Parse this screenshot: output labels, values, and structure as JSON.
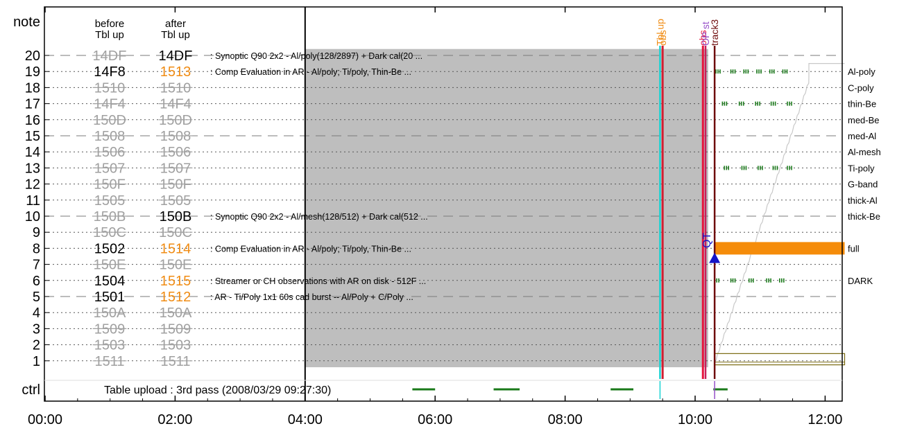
{
  "chart_data": {
    "type": "timeline",
    "title": "",
    "y_axis_title": "note",
    "ctrl_label": "ctrl",
    "rows": [
      "20",
      "19",
      "18",
      "17",
      "16",
      "15",
      "14",
      "13",
      "12",
      "11",
      "10",
      "9",
      "8",
      "7",
      "6",
      "5",
      "4",
      "3",
      "2",
      "1"
    ],
    "x_ticks": [
      "00:00",
      "02:00",
      "04:00",
      "06:00",
      "08:00",
      "10:00",
      "12:00"
    ],
    "x_range_hours": [
      0,
      12.3
    ],
    "col_headers": {
      "before": [
        "before",
        "Tbl up"
      ],
      "after": [
        "after",
        "Tbl up"
      ]
    },
    "table_rows": [
      {
        "row": 20,
        "before": "14DF",
        "before_style": "strike",
        "after": "14DF",
        "after_style": "normal",
        "dashed": true,
        "desc": ": Synoptic Q90 2x2 - Al/poly(128/2897) + Dark cal(20 ..."
      },
      {
        "row": 19,
        "before": "14F8",
        "before_style": "normal",
        "after": "1513",
        "after_style": "changed",
        "dashed": false,
        "desc": ": Comp Evaluation in AR - Al/poly; Ti/poly, Thin-Be ..."
      },
      {
        "row": 18,
        "before": "1510",
        "before_style": "strike",
        "after": "1510",
        "after_style": "strike",
        "dashed": false,
        "desc": ""
      },
      {
        "row": 17,
        "before": "14F4",
        "before_style": "strike",
        "after": "14F4",
        "after_style": "strike",
        "dashed": false,
        "desc": ""
      },
      {
        "row": 16,
        "before": "150D",
        "before_style": "strike",
        "after": "150D",
        "after_style": "strike",
        "dashed": false,
        "desc": ""
      },
      {
        "row": 15,
        "before": "1508",
        "before_style": "strike",
        "after": "1508",
        "after_style": "strike",
        "dashed": true,
        "desc": ""
      },
      {
        "row": 14,
        "before": "1506",
        "before_style": "strike",
        "after": "1506",
        "after_style": "strike",
        "dashed": false,
        "desc": ""
      },
      {
        "row": 13,
        "before": "1507",
        "before_style": "strike",
        "after": "1507",
        "after_style": "strike",
        "dashed": false,
        "desc": ""
      },
      {
        "row": 12,
        "before": "150F",
        "before_style": "strike",
        "after": "150F",
        "after_style": "strike",
        "dashed": false,
        "desc": ""
      },
      {
        "row": 11,
        "before": "1505",
        "before_style": "strike",
        "after": "1505",
        "after_style": "strike",
        "dashed": false,
        "desc": ""
      },
      {
        "row": 10,
        "before": "150B",
        "before_style": "strike",
        "after": "150B",
        "after_style": "normal",
        "dashed": true,
        "desc": ": Synoptic Q90 2x2 - Al/mesh(128/512) + Dark cal(512 ..."
      },
      {
        "row": 9,
        "before": "150C",
        "before_style": "strike",
        "after": "150C",
        "after_style": "strike",
        "dashed": false,
        "desc": ""
      },
      {
        "row": 8,
        "before": "1502",
        "before_style": "normal",
        "after": "1514",
        "after_style": "changed",
        "dashed": false,
        "desc": ": Comp Evaluation in AR - Al/poly; Ti/poly, Thin-Be ..."
      },
      {
        "row": 7,
        "before": "150E",
        "before_style": "strike",
        "after": "150E",
        "after_style": "strike",
        "dashed": false,
        "desc": ""
      },
      {
        "row": 6,
        "before": "1504",
        "before_style": "normal",
        "after": "1515",
        "after_style": "changed",
        "dashed": false,
        "desc": ": Streamer or CH observations with AR on disk - 512F ..."
      },
      {
        "row": 5,
        "before": "1501",
        "before_style": "normal",
        "after": "1512",
        "after_style": "changed",
        "dashed": true,
        "desc": ": AR - Ti/Poly 1x1 60s cad burst -- Al/Poly + C/Poly ..."
      },
      {
        "row": 4,
        "before": "150A",
        "before_style": "strike",
        "after": "150A",
        "after_style": "strike",
        "dashed": false,
        "desc": ""
      },
      {
        "row": 3,
        "before": "1509",
        "before_style": "strike",
        "after": "1509",
        "after_style": "strike",
        "dashed": false,
        "desc": ""
      },
      {
        "row": 2,
        "before": "1503",
        "before_style": "strike",
        "after": "1503",
        "after_style": "strike",
        "dashed": false,
        "desc": ""
      },
      {
        "row": 1,
        "before": "1511",
        "before_style": "strike",
        "after": "1511",
        "after_style": "strike",
        "dashed": false,
        "desc": ""
      }
    ],
    "right_labels": [
      {
        "row": 19,
        "label": "Al-poly"
      },
      {
        "row": 18,
        "label": "C-poly"
      },
      {
        "row": 17,
        "label": "thin-Be"
      },
      {
        "row": 16,
        "label": "med-Be"
      },
      {
        "row": 15,
        "label": "med-Al"
      },
      {
        "row": 14,
        "label": "Al-mesh"
      },
      {
        "row": 13,
        "label": "Ti-poly"
      },
      {
        "row": 12,
        "label": "G-band"
      },
      {
        "row": 11,
        "label": "thick-Al"
      },
      {
        "row": 10,
        "label": "thick-Be"
      },
      {
        "row": 8,
        "label": "full"
      },
      {
        "row": 6,
        "label": "DARK"
      }
    ],
    "ctrl_text": "Table upload : 3rd pass (2008/03/29 09:27:30)",
    "shaded_region": {
      "start": 4.0,
      "end": 10.2,
      "top_row": 20.4,
      "bottom_row": 0.6
    },
    "markers": [
      {
        "time": 9.46,
        "color": "#19d4d4",
        "label": "Tbl up",
        "label_color": "#f08c14"
      },
      {
        "time": 9.5,
        "color": "#d21e32",
        "label": "obs",
        "label_color": "#f08c14"
      },
      {
        "time": 10.12,
        "color": "#e6143c",
        "label": "obs",
        "label_color": "#e6143c"
      },
      {
        "time": 10.16,
        "color": "#c81e5a",
        "label": "OP st",
        "label_color": "#9650c8"
      },
      {
        "time": 10.3,
        "color": "#6e0a0a",
        "label": "track3",
        "label_color": "#6e0a0a"
      }
    ],
    "qt": {
      "label": "QT",
      "time": 10.3,
      "row": 7.3,
      "color": "#1414c8"
    },
    "full_bar": {
      "start": 10.3,
      "end": 12.3,
      "row": 8,
      "color": "#f58c0a"
    },
    "ctrl_segments": [
      {
        "start": 5.65,
        "end": 6.0
      },
      {
        "start": 6.9,
        "end": 7.3
      },
      {
        "start": 8.7,
        "end": 9.05
      },
      {
        "start": 10.28,
        "end": 10.5
      }
    ],
    "ctrl_ticks": [
      {
        "time": 9.46,
        "color": "#19d4d4"
      },
      {
        "time": 10.3,
        "color": "#9650c8"
      }
    ],
    "dash_patterns": [
      {
        "row": 19,
        "times": [
          10.32,
          10.55,
          10.75,
          10.95,
          11.15,
          11.35
        ]
      },
      {
        "row": 17,
        "times": [
          10.42,
          10.68,
          10.93,
          11.17,
          11.42
        ]
      },
      {
        "row": 13,
        "times": [
          10.45,
          10.72,
          10.97,
          11.2,
          11.42
        ]
      },
      {
        "row": 6,
        "times": [
          10.3,
          10.55,
          10.83,
          11.1,
          11.3
        ]
      }
    ],
    "ramp": {
      "start_time": 10.32,
      "end_time": 11.85,
      "start_row": 1.0,
      "end_row": 19.5,
      "color": "#c8c8c8"
    },
    "olive_box": {
      "start": 10.3,
      "end": 12.3,
      "top_row": 1.45,
      "bottom_row": 0.75,
      "color": "#7a6a10"
    },
    "colors": {
      "axis": "#000000",
      "grid": "#7a7a7a",
      "shade": "#bebebe",
      "strike_text": "#a0a0a0",
      "changed_text": "#f08c14",
      "normal_text": "#000000",
      "ctrl_green": "#1a7a1a",
      "dash_green": "#1a7a1a"
    }
  }
}
